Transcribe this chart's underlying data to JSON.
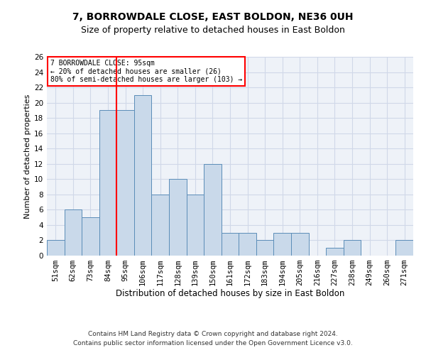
{
  "title1": "7, BORROWDALE CLOSE, EAST BOLDON, NE36 0UH",
  "title2": "Size of property relative to detached houses in East Boldon",
  "xlabel": "Distribution of detached houses by size in East Boldon",
  "ylabel": "Number of detached properties",
  "footnote1": "Contains HM Land Registry data © Crown copyright and database right 2024.",
  "footnote2": "Contains public sector information licensed under the Open Government Licence v3.0.",
  "annotation_line1": "7 BORROWDALE CLOSE: 95sqm",
  "annotation_line2": "← 20% of detached houses are smaller (26)",
  "annotation_line3": "80% of semi-detached houses are larger (103) →",
  "categories": [
    "51sqm",
    "62sqm",
    "73sqm",
    "84sqm",
    "95sqm",
    "106sqm",
    "117sqm",
    "128sqm",
    "139sqm",
    "150sqm",
    "161sqm",
    "172sqm",
    "183sqm",
    "194sqm",
    "205sqm",
    "216sqm",
    "227sqm",
    "238sqm",
    "249sqm",
    "260sqm",
    "271sqm"
  ],
  "values": [
    2,
    6,
    5,
    19,
    19,
    21,
    8,
    10,
    8,
    12,
    3,
    3,
    2,
    3,
    3,
    0,
    1,
    2,
    0,
    0,
    2
  ],
  "bar_color": "#c9d9ea",
  "bar_edge_color": "#5b8db8",
  "redline_index": 4,
  "ylim": [
    0,
    26
  ],
  "yticks": [
    0,
    2,
    4,
    6,
    8,
    10,
    12,
    14,
    16,
    18,
    20,
    22,
    24,
    26
  ],
  "grid_color": "#d0d8e8",
  "background_color": "#eef2f8",
  "annotation_box_color": "white",
  "annotation_box_edge": "red",
  "redline_color": "red",
  "title1_fontsize": 10,
  "title2_fontsize": 9,
  "xlabel_fontsize": 8.5,
  "ylabel_fontsize": 8,
  "tick_fontsize": 7.5,
  "footnote_fontsize": 6.5
}
